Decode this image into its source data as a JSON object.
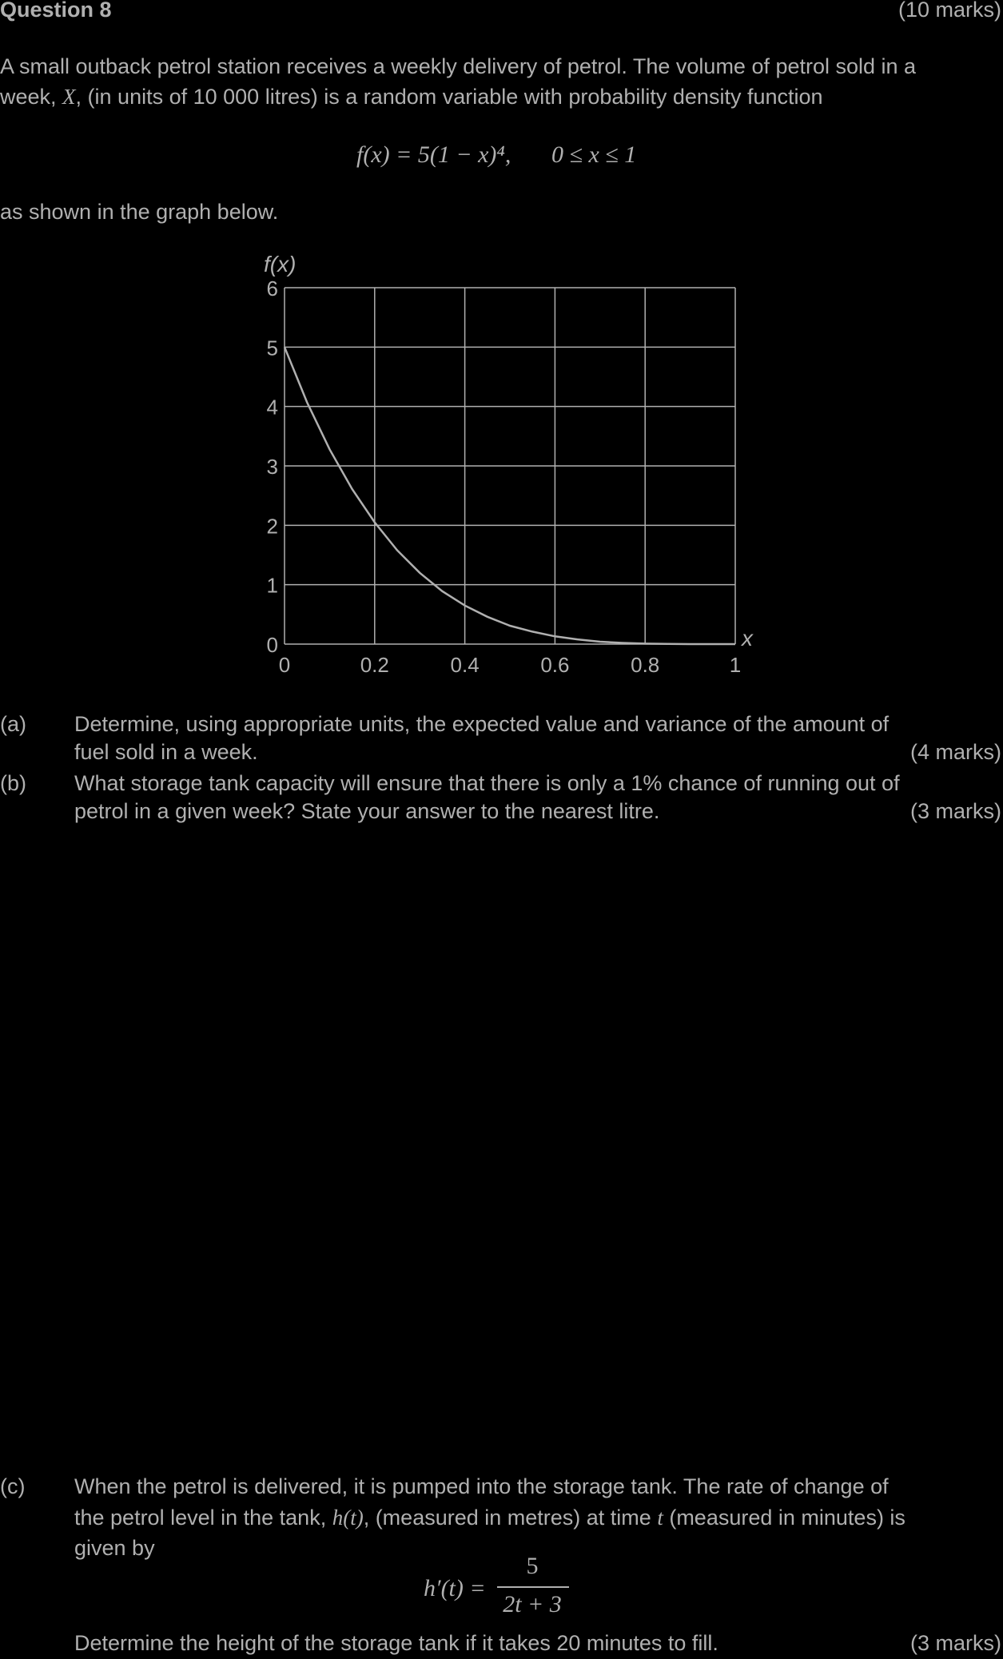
{
  "header": {
    "question_title": "Question 8",
    "total_marks": "(10 marks)"
  },
  "intro": {
    "line1": "A small outback petrol station receives a weekly delivery of petrol. The volume of petrol sold in a",
    "line2_pre": "week, ",
    "line2_var": "X",
    "line2_post": ", (in units of 10 000 litres) is a random variable with probability density function",
    "pdf_formula": "f(x) = 5(1 − x)⁴,",
    "pdf_domain": "0 ≤ x ≤ 1",
    "after_formula": "as shown in the graph below."
  },
  "chart_data": {
    "type": "line",
    "ylabel": "f(x)",
    "xlabel": "x",
    "xlim": [
      0,
      1
    ],
    "ylim": [
      0,
      6
    ],
    "x_ticks": [
      "0",
      "0.2",
      "0.4",
      "0.6",
      "0.8",
      "1"
    ],
    "y_ticks": [
      "0",
      "1",
      "2",
      "3",
      "4",
      "5",
      "6"
    ],
    "grid": true,
    "series": [
      {
        "x": [
          0,
          0.05,
          0.1,
          0.15,
          0.2,
          0.25,
          0.3,
          0.35,
          0.4,
          0.45,
          0.5,
          0.55,
          0.6,
          0.65,
          0.7,
          0.75,
          0.8,
          0.85,
          0.9,
          0.95,
          1
        ],
        "y": [
          5,
          4.07,
          3.28,
          2.61,
          2.05,
          1.58,
          1.2,
          0.89,
          0.65,
          0.46,
          0.31,
          0.21,
          0.13,
          0.08,
          0.04,
          0.02,
          0.008,
          0.003,
          0.0005,
          3e-05,
          0
        ]
      }
    ]
  },
  "parts": {
    "a": {
      "label": "(a)",
      "line1": "Determine, using appropriate units, the expected value and variance of the amount of",
      "line2": "fuel sold in a week.",
      "marks": "(4 marks)"
    },
    "b": {
      "label": "(b)",
      "line1": "What storage tank capacity will ensure that there is only a 1% chance of running out of",
      "line2": "petrol in a given week? State your answer to the nearest litre.",
      "marks": "(3 marks)"
    },
    "c": {
      "label": "(c)",
      "line1": "When the petrol is delivered, it is pumped into the storage tank. The rate of change of",
      "line2_pre": "the petrol level in the tank, ",
      "line2_var": "h(t)",
      "line2_mid": ", (measured in metres) at time ",
      "line2_t": "t",
      "line2_post": " (measured in minutes) is",
      "line3": "given by",
      "formula_lhs": "h′(t) =",
      "formula_num": "5",
      "formula_den": "2t + 3",
      "question": "Determine the height of the storage tank if it takes 20 minutes to fill.",
      "marks": "(3 marks)"
    }
  }
}
